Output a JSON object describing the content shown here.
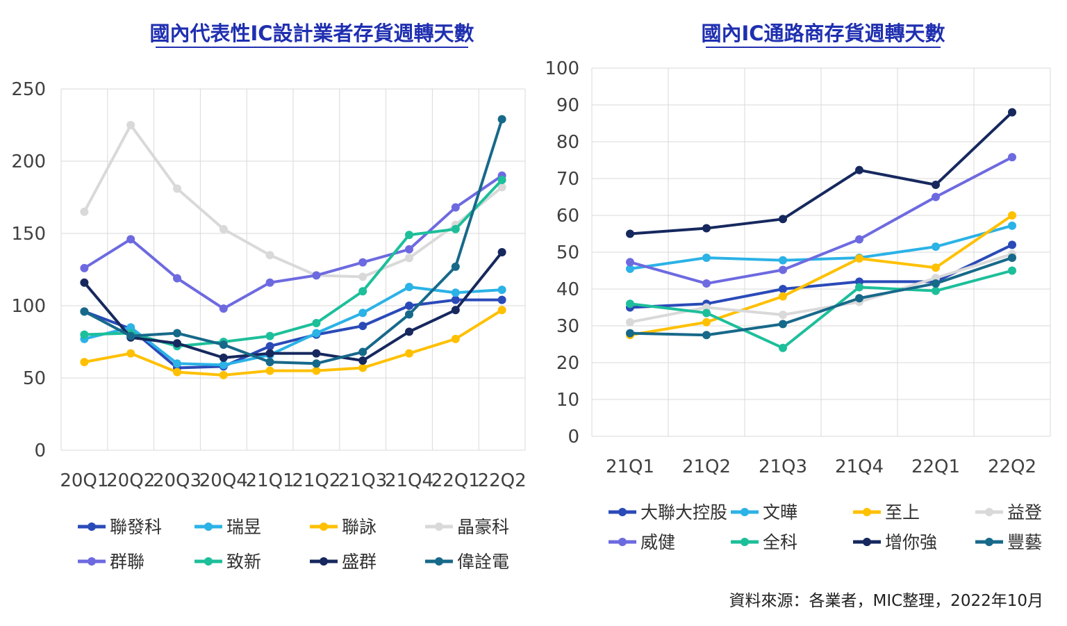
{
  "source": "資料來源：各業者，MIC整理，2022年10月",
  "chart_data": [
    {
      "type": "line",
      "title": "國內代表性IC設計業者存貨週轉天數",
      "xlabel": "",
      "ylabel": "",
      "categories": [
        "20Q1",
        "20Q2",
        "20Q3",
        "20Q4",
        "21Q1",
        "21Q2",
        "21Q3",
        "21Q4",
        "22Q1",
        "22Q2"
      ],
      "ylim": [
        0,
        250
      ],
      "yticks": [
        "0",
        "50",
        "100",
        "150",
        "200",
        "250"
      ],
      "grid": true,
      "legend_position": "bottom",
      "series": [
        {
          "name": "聯發科",
          "color": "#2a4ab8",
          "values": [
            96,
            84,
            57,
            58,
            72,
            80,
            86,
            100,
            104,
            104
          ]
        },
        {
          "name": "瑞昱",
          "color": "#2bb2e6",
          "values": [
            77,
            85,
            60,
            59,
            66,
            81,
            95,
            113,
            109,
            111
          ]
        },
        {
          "name": "聯詠",
          "color": "#ffc000",
          "values": [
            61,
            67,
            54,
            52,
            55,
            55,
            57,
            67,
            77,
            97
          ]
        },
        {
          "name": "晶豪科",
          "color": "#d9d9d9",
          "values": [
            165,
            225,
            181,
            153,
            135,
            121,
            120,
            133,
            156,
            182
          ]
        },
        {
          "name": "群聯",
          "color": "#6d6ae0",
          "values": [
            126,
            146,
            119,
            98,
            116,
            121,
            130,
            139,
            168,
            190
          ]
        },
        {
          "name": "致新",
          "color": "#1dbf9a",
          "values": [
            80,
            81,
            72,
            75,
            79,
            88,
            110,
            149,
            153,
            187
          ]
        },
        {
          "name": "盛群",
          "color": "#16285e",
          "values": [
            116,
            78,
            74,
            64,
            67,
            67,
            62,
            82,
            97,
            137
          ]
        },
        {
          "name": "偉詮電",
          "color": "#17698a",
          "values": [
            96,
            79,
            81,
            73,
            61,
            60,
            68,
            94,
            127,
            229
          ]
        }
      ]
    },
    {
      "type": "line",
      "title": "國內IC通路商存貨週轉天數",
      "xlabel": "",
      "ylabel": "",
      "categories": [
        "21Q1",
        "21Q2",
        "21Q3",
        "21Q4",
        "22Q1",
        "22Q2"
      ],
      "ylim": [
        0,
        100
      ],
      "yticks": [
        "0",
        "10",
        "20",
        "30",
        "40",
        "50",
        "60",
        "70",
        "80",
        "90",
        "100"
      ],
      "grid": true,
      "legend_position": "bottom",
      "series": [
        {
          "name": "大聯大控股",
          "color": "#2a4ab8",
          "values": [
            35,
            36,
            40,
            42,
            42,
            52
          ]
        },
        {
          "name": "文曄",
          "color": "#2bb2e6",
          "values": [
            45.5,
            48.5,
            47.8,
            48.5,
            51.5,
            57.2
          ]
        },
        {
          "name": "至上",
          "color": "#ffc000",
          "values": [
            27.5,
            31,
            38,
            48.3,
            45.8,
            60
          ]
        },
        {
          "name": "益登",
          "color": "#d9d9d9",
          "values": [
            31,
            35,
            33,
            36.5,
            43,
            49.5
          ]
        },
        {
          "name": "威健",
          "color": "#6d6ae0",
          "values": [
            47.3,
            41.5,
            45.2,
            53.5,
            65,
            75.8
          ]
        },
        {
          "name": "全科",
          "color": "#1dbf9a",
          "values": [
            36,
            33.5,
            24,
            40.5,
            39.5,
            45
          ]
        },
        {
          "name": "增你強",
          "color": "#16285e",
          "values": [
            55,
            56.5,
            59,
            72.3,
            68.3,
            88
          ]
        },
        {
          "name": "豐藝",
          "color": "#17698a",
          "values": [
            28,
            27.5,
            30.5,
            37.5,
            41.5,
            48.5
          ]
        }
      ]
    }
  ]
}
